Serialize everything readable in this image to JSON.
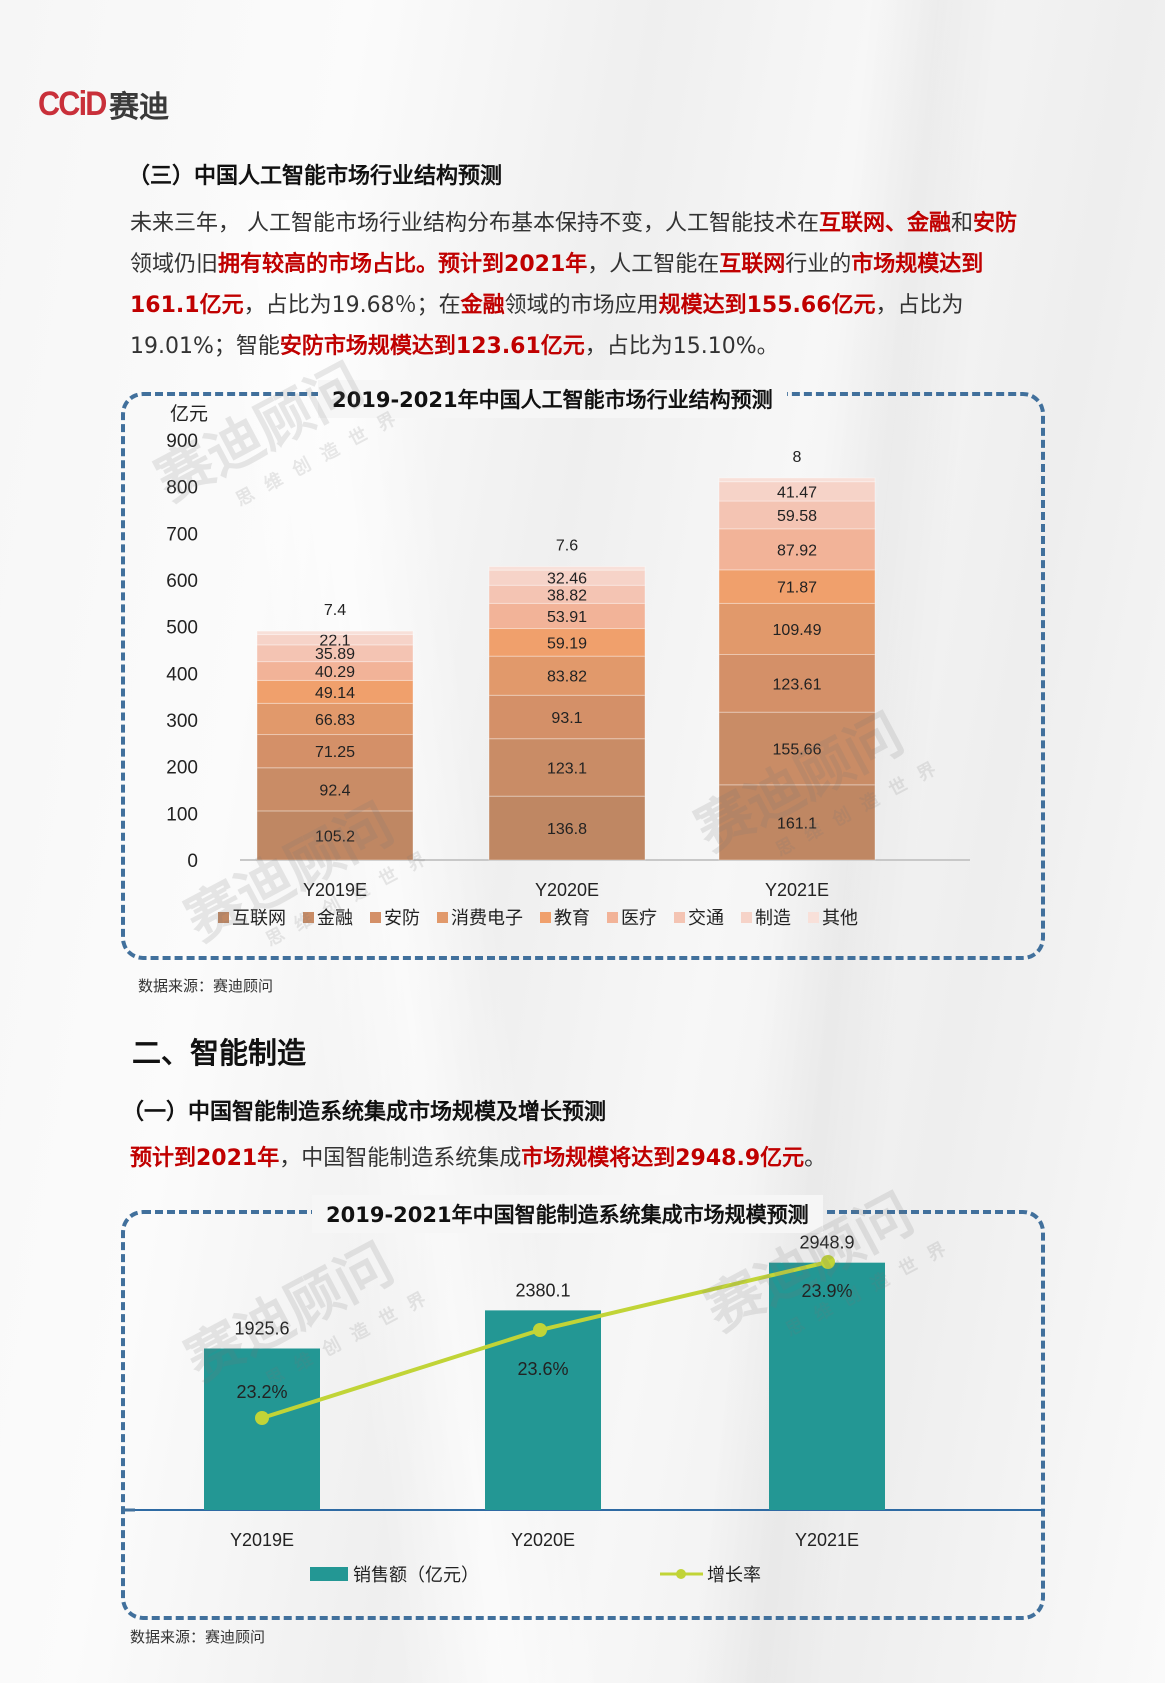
{
  "logo": {
    "brand_latin": "CCiD",
    "brand_cn": "赛迪"
  },
  "section3": {
    "heading": "（三）中国人工智能市场行业结构预测",
    "paragraph": [
      {
        "t": "未来三年， 人工智能市场行业结构分布基本保持不变，人工智能技术在",
        "hl": false
      },
      {
        "t": "互联网、金融",
        "hl": true
      },
      {
        "t": "和",
        "hl": false
      },
      {
        "t": "安防",
        "hl": true
      },
      {
        "t": "领域仍旧",
        "hl": false
      },
      {
        "t": "拥有较高的市场占比。预计到2021年",
        "hl": true
      },
      {
        "t": "，人工智能在",
        "hl": false
      },
      {
        "t": "互联网",
        "hl": true
      },
      {
        "t": "行业的",
        "hl": false
      },
      {
        "t": "市场规模达到161.1亿元",
        "hl": true
      },
      {
        "t": "，占比为19.68％；在",
        "hl": false
      },
      {
        "t": "金融",
        "hl": true
      },
      {
        "t": "领域的市场应用",
        "hl": false
      },
      {
        "t": "规模达到155.66亿元",
        "hl": true
      },
      {
        "t": "，占比为19.01%；智能",
        "hl": false
      },
      {
        "t": "安防市场规模达到123.61亿元",
        "hl": true
      },
      {
        "t": "，占比为15.10%。",
        "hl": false
      }
    ],
    "source": "数据来源：赛迪顾问"
  },
  "section_intelligent_manufacturing": {
    "heading": "二、智能制造",
    "subheading": "（一）中国智能制造系统集成市场规模及增长预测",
    "paragraph": [
      {
        "t": "预计到2021年",
        "hl": true
      },
      {
        "t": "，中国智能制造系统集成",
        "hl": false
      },
      {
        "t": "市场规模将达到2948.9亿元",
        "hl": true
      },
      {
        "t": "。",
        "hl": false
      }
    ],
    "source": "数据来源：赛迪顾问"
  },
  "watermarks": {
    "main": "赛迪顾问",
    "sub": "思维创造世界"
  },
  "chart_data": [
    {
      "type": "bar",
      "stacked": true,
      "title": "2019-2021年中国人工智能市场行业结构预测",
      "ylabel": "亿元",
      "xlabel": "",
      "ylim": [
        0,
        900
      ],
      "yticks": [
        0,
        100,
        200,
        300,
        400,
        500,
        600,
        700,
        800,
        900
      ],
      "grid": false,
      "legend_position": "bottom",
      "categories": [
        "Y2019E",
        "Y2020E",
        "Y2021E"
      ],
      "series": [
        {
          "name": "互联网",
          "color": "#bf8763",
          "values": [
            105.2,
            136.8,
            161.1
          ]
        },
        {
          "name": "金融",
          "color": "#c98c66",
          "values": [
            92.4,
            123.1,
            155.66
          ]
        },
        {
          "name": "安防",
          "color": "#d49068",
          "values": [
            71.25,
            93.1,
            123.61
          ]
        },
        {
          "name": "消费电子",
          "color": "#e1996b",
          "values": [
            66.83,
            83.82,
            109.49
          ]
        },
        {
          "name": "教育",
          "color": "#f0a06c",
          "values": [
            49.14,
            59.19,
            71.87
          ]
        },
        {
          "name": "医疗",
          "color": "#f2b398",
          "values": [
            40.29,
            53.91,
            87.92
          ]
        },
        {
          "name": "交通",
          "color": "#f4c4b3",
          "values": [
            35.89,
            38.82,
            59.58
          ]
        },
        {
          "name": "制造",
          "color": "#f6d3c8",
          "values": [
            22.1,
            32.46,
            41.47
          ]
        },
        {
          "name": "其他",
          "color": "#f8e0d9",
          "values": [
            7.4,
            7.6,
            8
          ]
        }
      ]
    },
    {
      "type": "bar+line",
      "title": "2019-2021年中国智能制造系统集成市场规模预测",
      "categories": [
        "Y2019E",
        "Y2020E",
        "Y2021E"
      ],
      "grid": false,
      "legend_position": "bottom",
      "series": [
        {
          "name": "销售额（亿元）",
          "type": "bar",
          "color": "#239794",
          "values": [
            1925.6,
            2380.1,
            2948.9
          ]
        },
        {
          "name": "增长率",
          "type": "line",
          "color": "#c1d437",
          "values": [
            23.2,
            23.6,
            23.9
          ],
          "labels": [
            "23.2%",
            "23.6%",
            "23.9%"
          ]
        }
      ]
    }
  ]
}
